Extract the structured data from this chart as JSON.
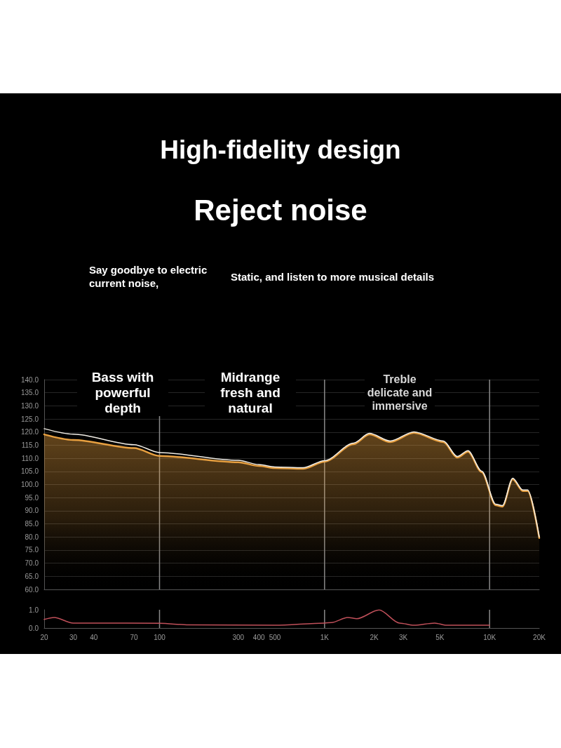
{
  "chart_data": [
    {
      "type": "area",
      "title": "High-fidelity design",
      "subtitle": "Reject noise",
      "annotations": [
        "Say goodbye to electric current noise,",
        "Static, and listen to more musical details",
        "Bass with powerful depth",
        "Midrange fresh and natural",
        "Treble delicate and immersive"
      ],
      "x": [
        20,
        30,
        70,
        100,
        300,
        400,
        500,
        740,
        1000,
        1500,
        1870,
        2500,
        3480,
        5250,
        6370,
        7400,
        8970,
        10890,
        11970,
        13810,
        15910,
        17020,
        20000
      ],
      "series": [
        {
          "color": "#e8a040",
          "values": [
            119.1,
            117.0,
            113.9,
            110.9,
            108.5,
            107.1,
            106.3,
            106.0,
            108.7,
            115.4,
            119.1,
            116.2,
            119.7,
            116.2,
            110.3,
            112.5,
            104.7,
            92.1,
            91.6,
            102.0,
            97.5,
            97.5,
            79.6
          ]
        },
        {
          "type": "line",
          "color": "#f2eee6",
          "values": [
            121.3,
            119.2,
            115.2,
            112.2,
            109.2,
            107.6,
            106.7,
            106.4,
            109.1,
            115.8,
            119.5,
            116.6,
            120.1,
            116.6,
            110.7,
            112.9,
            105.1,
            92.5,
            92.0,
            102.4,
            97.9,
            97.9,
            80.0
          ]
        }
      ],
      "log": "x",
      "xlim": [
        20,
        20000
      ],
      "xticks": [
        20,
        30,
        40,
        70,
        100,
        300,
        400,
        500,
        1000,
        2000,
        3000,
        5000,
        10000,
        20000
      ],
      "ylim": [
        60,
        140
      ],
      "yticks": [
        {
          "value": 60,
          "label": "60.0"
        },
        {
          "value": 65,
          "label": "65.0"
        },
        {
          "value": 70,
          "label": "70.0"
        },
        {
          "value": 75,
          "label": "75.0"
        },
        {
          "value": 80,
          "label": "80.0"
        },
        {
          "value": 85,
          "label": "85.0"
        },
        {
          "value": 90,
          "label": "90.0"
        },
        {
          "value": 95,
          "label": "95.0"
        },
        {
          "value": 100,
          "label": "100.0"
        },
        {
          "value": 105,
          "label": "105.0"
        },
        {
          "value": 110,
          "label": "110.0"
        },
        {
          "value": 115,
          "label": "115.0"
        },
        {
          "value": 120,
          "label": "120.0"
        },
        {
          "value": 125,
          "label": "125.0"
        },
        {
          "value": 130,
          "label": "130.0"
        },
        {
          "value": 135,
          "label": "135.0"
        },
        {
          "value": 140,
          "label": "140.0"
        }
      ],
      "tick_labels": "y",
      "grid": "y",
      "ref_lines": [
        {
          "axis": "x",
          "value": 100,
          "color": "#8a8a8a"
        },
        {
          "axis": "x",
          "value": 1000,
          "color": "#8a8a8a"
        },
        {
          "axis": "x",
          "value": 10000,
          "color": "#8a8a8a"
        }
      ]
    },
    {
      "type": "line",
      "x": [
        20,
        23,
        30,
        40,
        100,
        150,
        500,
        1000,
        1100,
        1380,
        1570,
        2140,
        2850,
        3480,
        4650,
        5500,
        10000
      ],
      "series": [
        {
          "color": "#c0505a",
          "values": [
            0.47,
            0.58,
            0.27,
            0.27,
            0.26,
            0.17,
            0.15,
            0.27,
            0.3,
            0.58,
            0.51,
            0.99,
            0.27,
            0.15,
            0.27,
            0.15,
            0.15
          ]
        }
      ],
      "log": "x",
      "xlim": [
        20,
        20000
      ],
      "xticks": [
        20,
        30,
        40,
        70,
        100,
        300,
        400,
        500,
        {
          "value": 1000,
          "label": "1K"
        },
        {
          "value": 2000,
          "label": "2K"
        },
        {
          "value": 3000,
          "label": "3K"
        },
        {
          "value": 5000,
          "label": "5K"
        },
        {
          "value": 10000,
          "label": "10K"
        },
        {
          "value": 20000,
          "label": "20K"
        }
      ],
      "ylim": [
        0,
        1
      ],
      "yticks": [
        {
          "value": 0,
          "label": "0.0"
        },
        {
          "value": 1,
          "label": "1.0"
        }
      ],
      "ref_lines": [
        {
          "axis": "x",
          "value": 100,
          "color": "#8a8a8a"
        },
        {
          "axis": "x",
          "value": 1000,
          "color": "#8a8a8a"
        },
        {
          "axis": "x",
          "value": 10000,
          "color": "#8a8a8a"
        }
      ]
    }
  ]
}
